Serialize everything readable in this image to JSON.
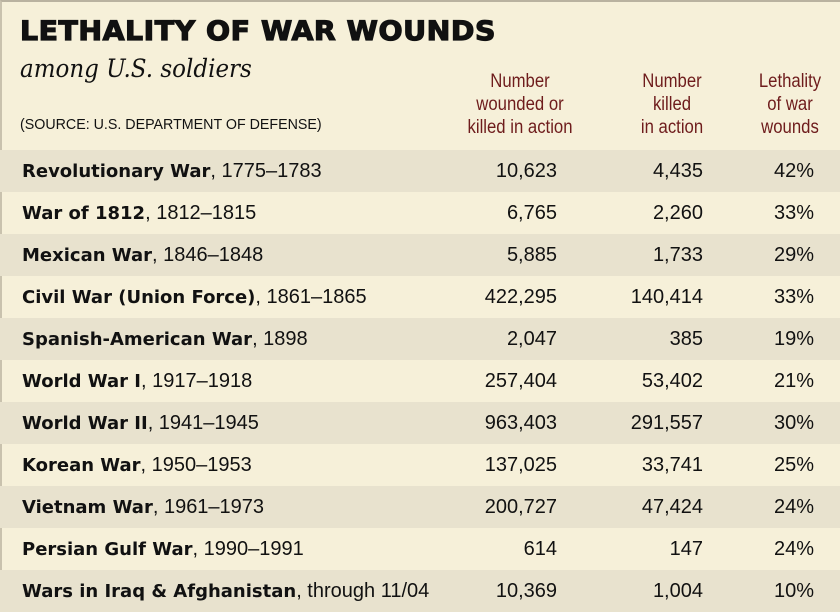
{
  "title": "LETHALITY OF WAR WOUNDS",
  "subtitle": "among U.S. soldiers",
  "source": "(SOURCE: U.S. DEPARTMENT OF DEFENSE)",
  "colors": {
    "background": "#f6f0d9",
    "shaded_row": "#e8e2ce",
    "header_text": "#6e1c1c"
  },
  "chart_data": {
    "type": "table",
    "title": "LETHALITY OF WAR WOUNDS",
    "subtitle": "among U.S. soldiers",
    "columns": [
      "Number wounded or killed in action",
      "Number killed in action",
      "Lethality of war wounds"
    ],
    "rows": [
      {
        "war": "Revolutionary War",
        "period": ", 1775–1783",
        "wounded_or_killed": "10,623",
        "killed": "4,435",
        "lethality": "42%"
      },
      {
        "war": "War of 1812",
        "period": ", 1812–1815",
        "wounded_or_killed": "6,765",
        "killed": "2,260",
        "lethality": "33%"
      },
      {
        "war": "Mexican War",
        "period": ", 1846–1848",
        "wounded_or_killed": "5,885",
        "killed": "1,733",
        "lethality": "29%"
      },
      {
        "war": "Civil War (Union Force)",
        "period": ", 1861–1865",
        "wounded_or_killed": "422,295",
        "killed": "140,414",
        "lethality": "33%"
      },
      {
        "war": "Spanish-American War",
        "period": ", 1898",
        "wounded_or_killed": "2,047",
        "killed": "385",
        "lethality": "19%"
      },
      {
        "war": "World War I",
        "period": ", 1917–1918",
        "wounded_or_killed": "257,404",
        "killed": "53,402",
        "lethality": "21%"
      },
      {
        "war": "World War II",
        "period": ", 1941–1945",
        "wounded_or_killed": "963,403",
        "killed": "291,557",
        "lethality": "30%"
      },
      {
        "war": "Korean War",
        "period": ", 1950–1953",
        "wounded_or_killed": "137,025",
        "killed": "33,741",
        "lethality": "25%"
      },
      {
        "war": "Vietnam War",
        "period": ", 1961–1973",
        "wounded_or_killed": "200,727",
        "killed": "47,424",
        "lethality": "24%"
      },
      {
        "war": "Persian Gulf War",
        "period": ", 1990–1991",
        "wounded_or_killed": "614",
        "killed": "147",
        "lethality": "24%"
      },
      {
        "war": "Wars in Iraq & Afghanistan",
        "period": ", through 11/04",
        "wounded_or_killed": "10,369",
        "killed": "1,004",
        "lethality": "10%"
      }
    ]
  }
}
